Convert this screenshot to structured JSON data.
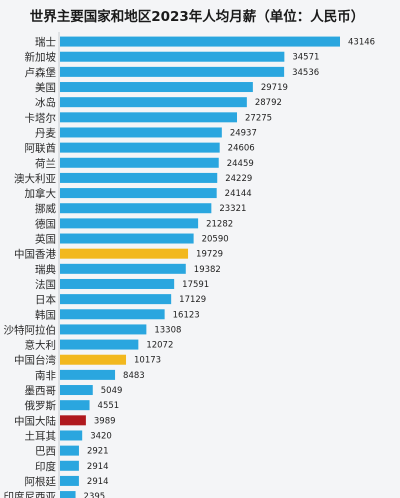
{
  "chart_data": {
    "type": "bar",
    "orientation": "horizontal",
    "title": "世界主要国家和地区2023年人均月薪（单位：人民币）",
    "categories": [
      "瑞士",
      "新加坡",
      "卢森堡",
      "美国",
      "冰岛",
      "卡塔尔",
      "丹麦",
      "阿联酋",
      "荷兰",
      "澳大利亚",
      "加拿大",
      "挪威",
      "德国",
      "英国",
      "中国香港",
      "瑞典",
      "法国",
      "日本",
      "韩国",
      "沙特阿拉伯",
      "意大利",
      "中国台湾",
      "南非",
      "墨西哥",
      "俄罗斯",
      "中国大陆",
      "土耳其",
      "巴西",
      "印度",
      "阿根廷",
      "印度尼西亚"
    ],
    "values": [
      43146,
      34571,
      34536,
      29719,
      28792,
      27275,
      24937,
      24606,
      24459,
      24229,
      24144,
      23321,
      21282,
      20590,
      19729,
      19382,
      17591,
      17129,
      16123,
      13308,
      12072,
      10173,
      8483,
      5049,
      4551,
      3989,
      3420,
      2921,
      2914,
      2914,
      2395
    ],
    "bar_colors": [
      "#2aa6df",
      "#2aa6df",
      "#2aa6df",
      "#2aa6df",
      "#2aa6df",
      "#2aa6df",
      "#2aa6df",
      "#2aa6df",
      "#2aa6df",
      "#2aa6df",
      "#2aa6df",
      "#2aa6df",
      "#2aa6df",
      "#2aa6df",
      "#f2b81e",
      "#2aa6df",
      "#2aa6df",
      "#2aa6df",
      "#2aa6df",
      "#2aa6df",
      "#2aa6df",
      "#f2b81e",
      "#2aa6df",
      "#2aa6df",
      "#2aa6df",
      "#b0191e",
      "#2aa6df",
      "#2aa6df",
      "#2aa6df",
      "#2aa6df",
      "#2aa6df"
    ],
    "xlim": [
      0,
      43146
    ],
    "grid": false,
    "legend": "none"
  }
}
